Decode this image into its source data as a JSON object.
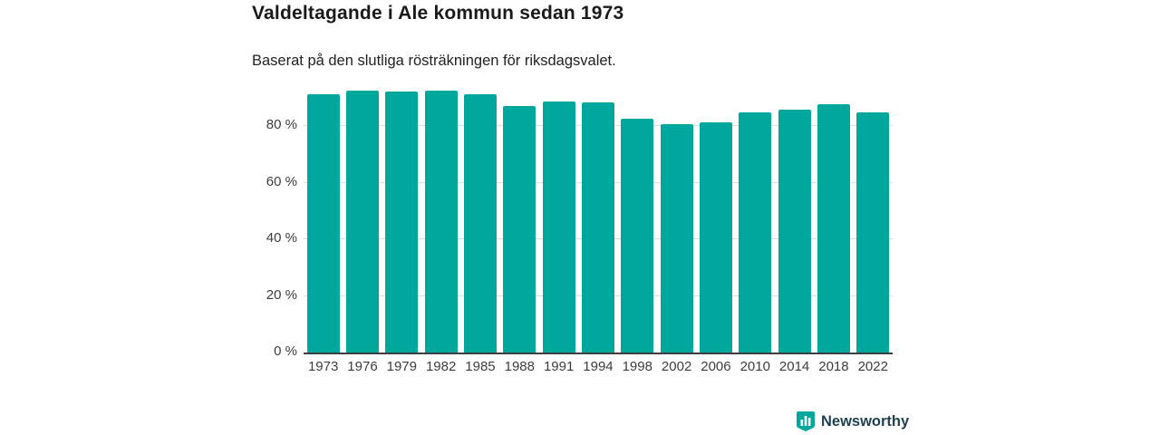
{
  "chart": {
    "title": "Valdeltagande i Ale kommun sedan 1973",
    "subtitle": "Baserat på den slutliga rösträkningen för riksdagsvalet."
  },
  "chart_data": {
    "type": "bar",
    "title": "Valdeltagande i Ale kommun sedan 1973",
    "subtitle": "Baserat på den slutliga rösträkningen för riksdagsvalet.",
    "categories": [
      "1973",
      "1976",
      "1979",
      "1982",
      "1985",
      "1988",
      "1991",
      "1994",
      "1998",
      "2002",
      "2006",
      "2010",
      "2014",
      "2018",
      "2022"
    ],
    "values": [
      91.5,
      92.7,
      92.2,
      92.7,
      91.3,
      87.2,
      88.8,
      88.6,
      82.7,
      80.8,
      81.5,
      84.9,
      86.0,
      87.9,
      85.0
    ],
    "unit": "%",
    "xlabel": "",
    "ylabel": "",
    "ylim": [
      0,
      100
    ],
    "yticks": [
      0,
      20,
      40,
      60,
      80
    ],
    "ytick_labels": [
      "0 %",
      "20 %",
      "40 %",
      "60 %",
      "80 %"
    ],
    "bar_color": "#00a79c",
    "grid": true,
    "legend": false
  },
  "footer": {
    "brand": "Newsworthy",
    "brand_color": "#1d4252",
    "logo_color": "#00a79c",
    "logo_icon": "bar-chart-shield-icon"
  }
}
